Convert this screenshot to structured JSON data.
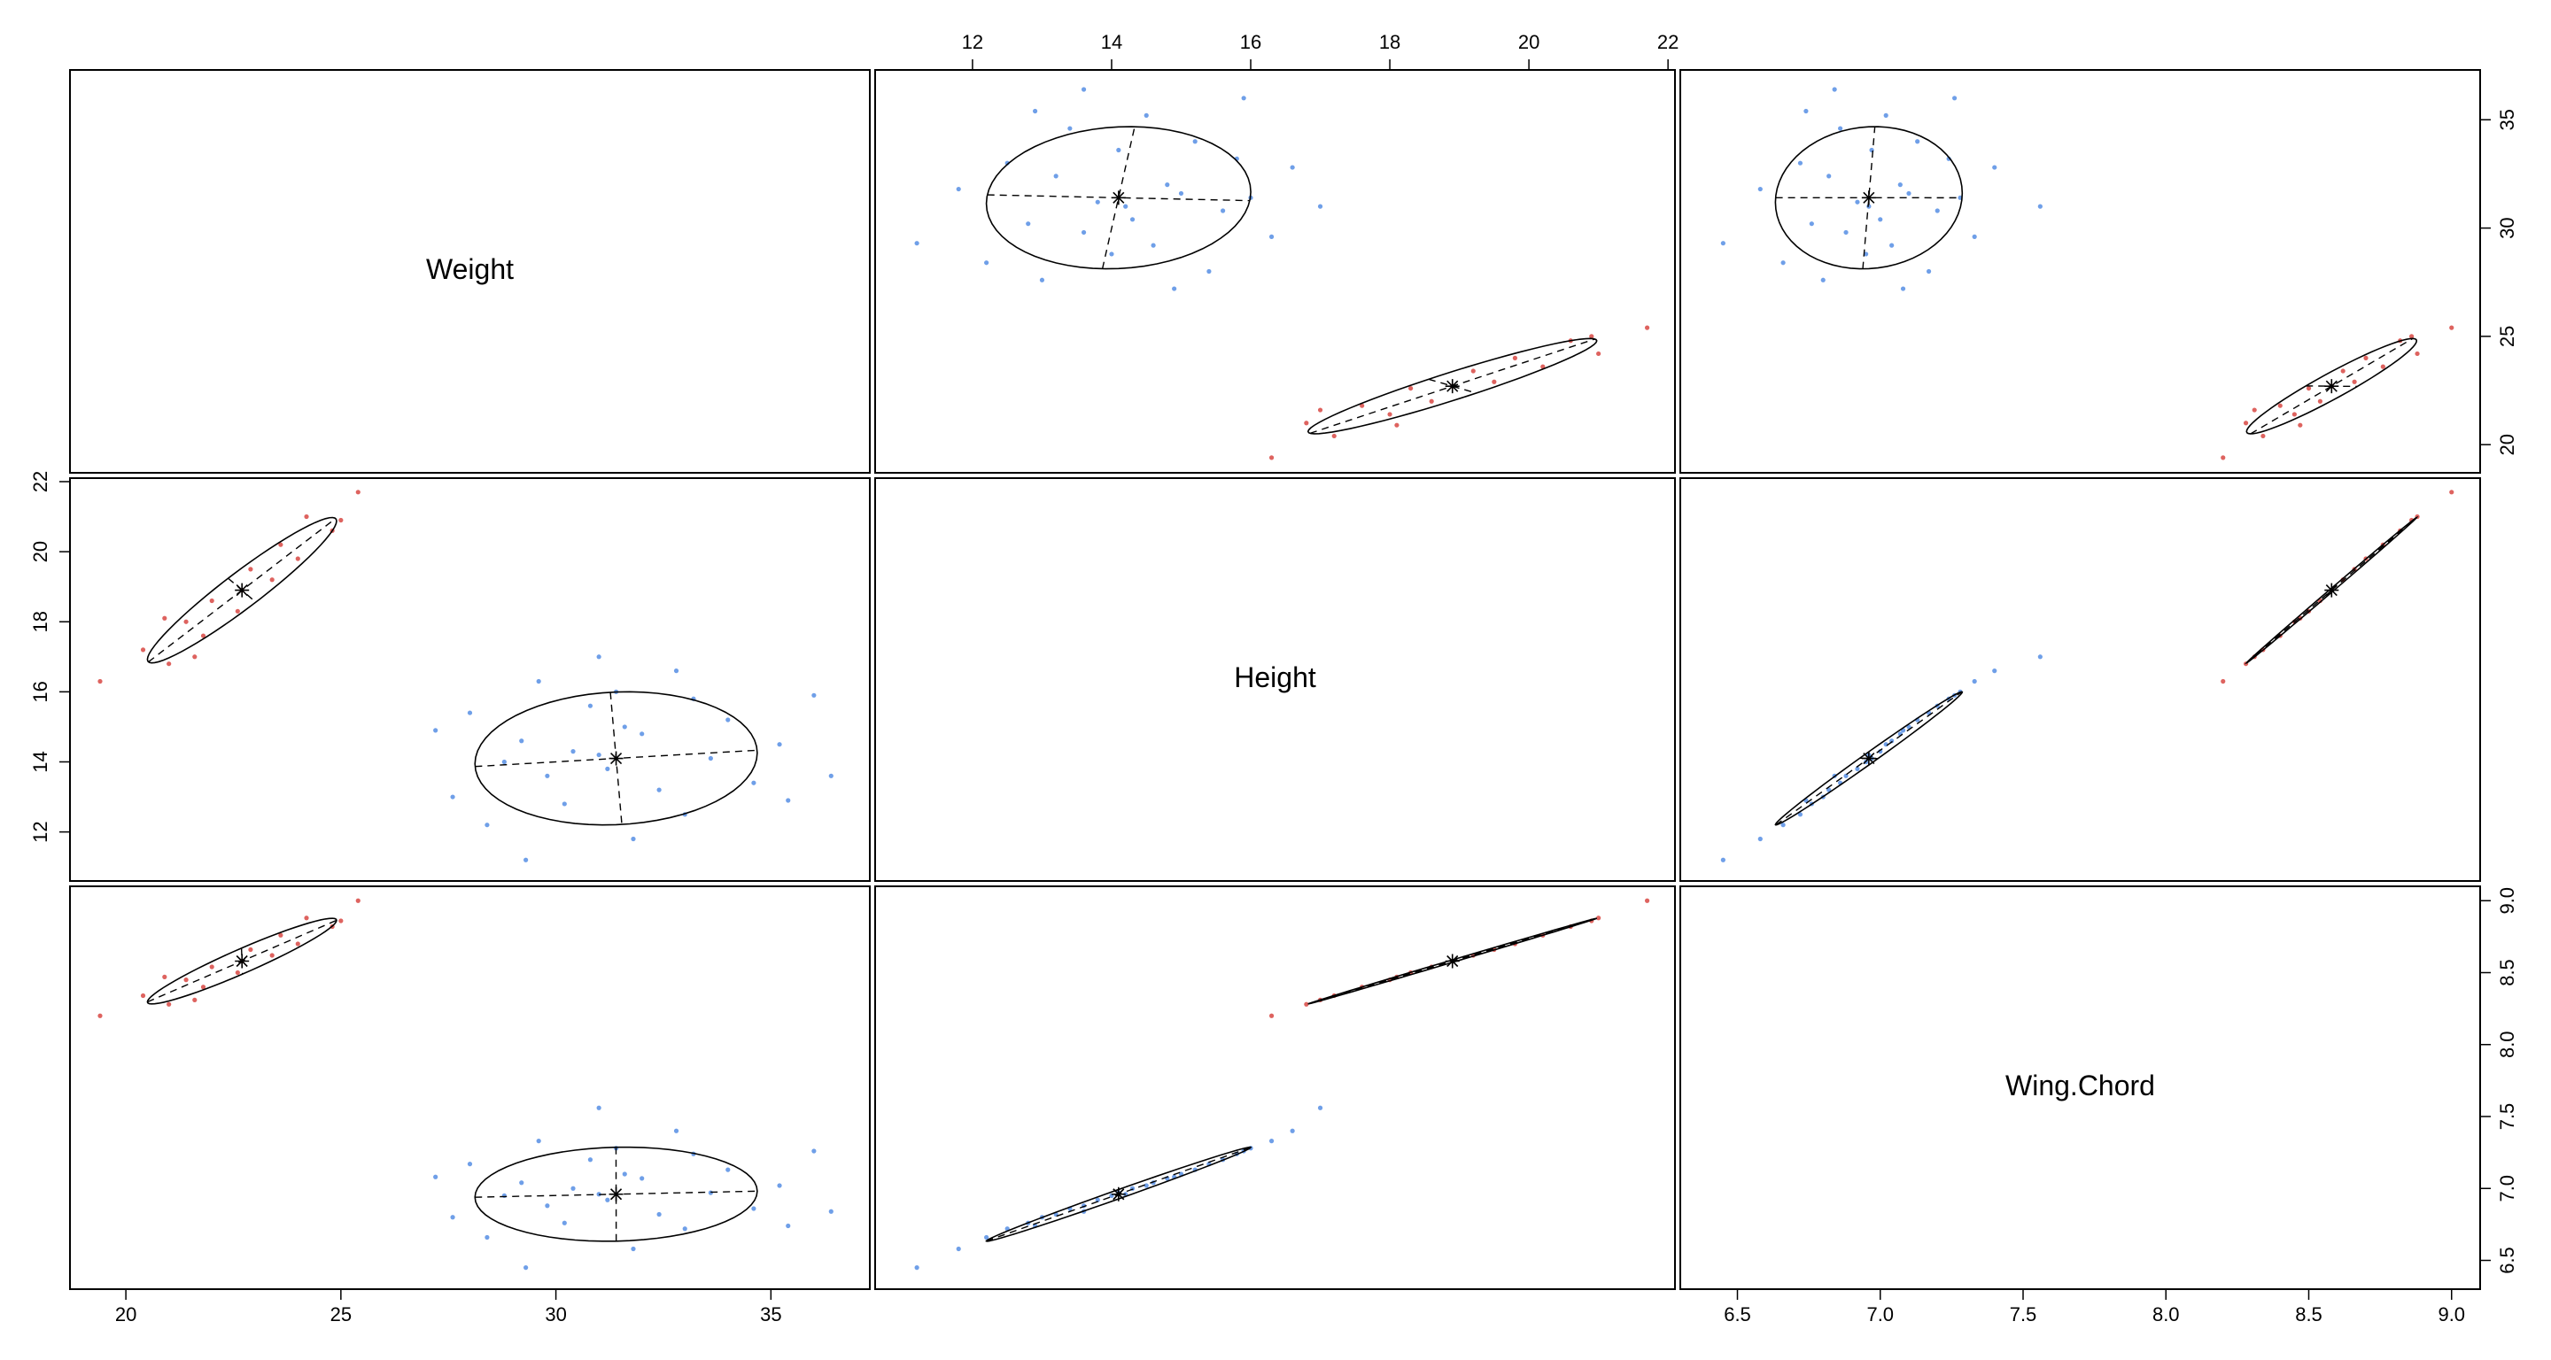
{
  "chart_data": {
    "type": "scatter-matrix",
    "variables": [
      {
        "label": "Weight",
        "lim": [
          18.7,
          37.3
        ],
        "ticks": [
          20,
          25,
          30,
          35
        ]
      },
      {
        "label": "Height",
        "lim": [
          10.6,
          22.1
        ],
        "ticks": [
          12,
          14,
          16,
          18,
          20,
          22
        ]
      },
      {
        "label": "Wing.Chord",
        "lim": [
          6.3,
          9.1
        ],
        "ticks": [
          6.5,
          {
            "value": 7,
            "label": "7.0"
          },
          7.5,
          {
            "value": 8,
            "label": "8.0"
          },
          8.5,
          {
            "value": 9,
            "label": "9.0"
          }
        ]
      }
    ],
    "groups": [
      {
        "color": "#3f7fe0",
        "center": [
          31.4,
          14.1,
          6.96
        ],
        "values": [
          [
            29.3,
            31.8,
            28.4,
            33.0,
            30.2,
            27.6,
            32.4,
            34.6,
            29.8,
            31.2,
            28.8,
            33.6,
            31.0,
            30.4,
            35.2,
            29.2,
            32.0,
            31.6,
            34.0,
            28.0,
            30.8,
            33.2,
            31.4,
            29.6,
            32.8,
            31.0,
            36.4,
            27.2,
            35.4,
            36.0
          ],
          [
            11.2,
            11.8,
            12.2,
            12.5,
            12.8,
            13.0,
            13.2,
            13.4,
            13.6,
            13.8,
            14.0,
            14.1,
            14.2,
            14.3,
            14.5,
            14.6,
            14.8,
            15.0,
            15.2,
            15.4,
            15.6,
            15.8,
            16.0,
            16.3,
            16.6,
            17.0,
            13.6,
            14.9,
            12.9,
            15.9
          ],
          [
            6.45,
            6.58,
            6.66,
            6.72,
            6.76,
            6.8,
            6.82,
            6.86,
            6.88,
            6.92,
            6.95,
            6.97,
            6.96,
            7.0,
            7.02,
            7.04,
            7.07,
            7.1,
            7.13,
            7.17,
            7.2,
            7.24,
            7.28,
            7.33,
            7.4,
            7.56,
            6.84,
            7.08,
            6.74,
            7.26
          ]
        ]
      },
      {
        "color": "#d32f2a",
        "center": [
          22.7,
          18.9,
          8.58
        ],
        "values": [
          [
            19.4,
            21.0,
            20.4,
            21.8,
            21.4,
            22.6,
            22.0,
            22.7,
            23.4,
            22.9,
            24.0,
            23.6,
            24.8,
            24.2,
            25.4,
            21.6,
            25.0,
            20.9
          ],
          [
            16.3,
            16.8,
            17.2,
            17.6,
            18.0,
            18.3,
            18.6,
            18.9,
            19.2,
            19.5,
            19.8,
            20.2,
            20.6,
            21.0,
            21.7,
            17.0,
            20.9,
            18.1
          ],
          [
            8.2,
            8.28,
            8.34,
            8.4,
            8.45,
            8.5,
            8.54,
            8.58,
            8.62,
            8.66,
            8.7,
            8.76,
            8.82,
            8.88,
            9.0,
            8.31,
            8.86,
            8.47
          ]
        ]
      }
    ]
  }
}
